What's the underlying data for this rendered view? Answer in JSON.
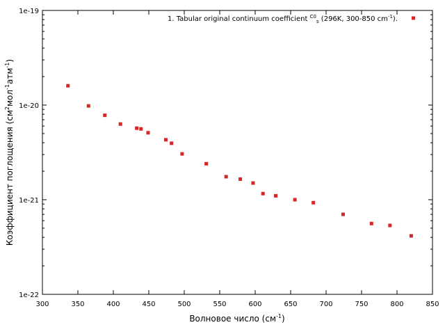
{
  "chart_data": {
    "type": "scatter",
    "xlabel": "Волновое число (см",
    "xlabel_sup": "-1",
    "xlabel_close": ")",
    "ylabel": "Коэффициент поглощения (см",
    "ylabel_sup1": "2",
    "ylabel_mid": "мол",
    "ylabel_sup2": "-1",
    "ylabel_mid2": "атм",
    "ylabel_sup3": "-1",
    "ylabel_close": ")",
    "xlim": [
      300,
      850
    ],
    "ylim": [
      1e-22,
      1e-19
    ],
    "yscale": "log",
    "x_ticks": [
      300,
      350,
      400,
      450,
      500,
      550,
      600,
      650,
      700,
      750,
      800,
      850
    ],
    "y_ticks": [
      {
        "value": 1e-22,
        "label": "1e-22"
      },
      {
        "value": 1e-21,
        "label": "1e-21"
      },
      {
        "value": 1e-20,
        "label": "1e-20"
      },
      {
        "value": 1e-19,
        "label": "1e-19"
      }
    ],
    "grid": false,
    "legend": {
      "placement": "top-right",
      "label": "1. Tabular original continuum coefficient ",
      "sym_c": "C",
      "sym_sup": "0",
      "sym_sub": "s",
      "tail": "  (296K, 300-850 cm",
      "tail_sup": "-1",
      "tail_end": ")."
    },
    "color": "#d62728",
    "series": [
      {
        "x": [
          336,
          365,
          388,
          410,
          433,
          439,
          449,
          474,
          482,
          497,
          531,
          559,
          579,
          597,
          611,
          629,
          656,
          682,
          724,
          764,
          790,
          820
        ],
        "y": [
          1.6e-20,
          9.8e-21,
          7.8e-21,
          6.3e-21,
          5.7e-21,
          5.6e-21,
          5.1e-21,
          4.3e-21,
          3.95e-21,
          3.05e-21,
          2.4e-21,
          1.75e-21,
          1.65e-21,
          1.5e-21,
          1.16e-21,
          1.1e-21,
          1e-21,
          9.3e-22,
          7e-22,
          5.6e-22,
          5.35e-22,
          4.15e-22
        ]
      }
    ]
  }
}
